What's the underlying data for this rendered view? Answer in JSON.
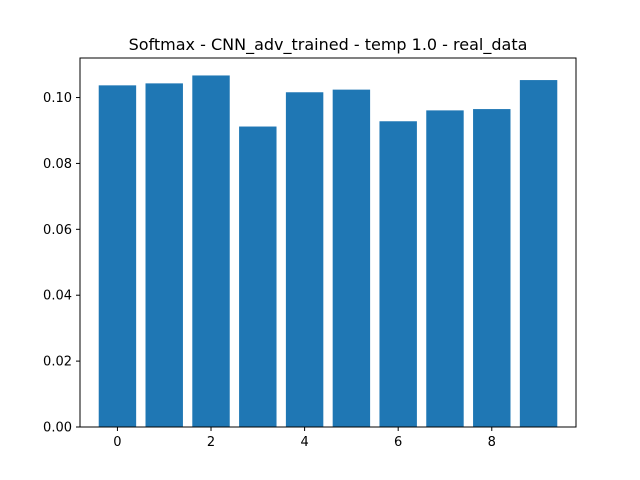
{
  "chart_data": {
    "type": "bar",
    "title": "Softmax - CNN_adv_trained - temp 1.0 - real_data",
    "xlabel": "",
    "ylabel": "",
    "categories": [
      0,
      1,
      2,
      3,
      4,
      5,
      6,
      7,
      8,
      9
    ],
    "values": [
      0.1037,
      0.1043,
      0.1067,
      0.0912,
      0.1016,
      0.1024,
      0.0928,
      0.0961,
      0.0965,
      0.1053
    ],
    "xlim": [
      -0.8,
      9.8
    ],
    "ylim": [
      0.0,
      0.112
    ],
    "xticks": [
      0,
      2,
      4,
      6,
      8
    ],
    "xtick_labels": [
      "0",
      "2",
      "4",
      "6",
      "8"
    ],
    "yticks": [
      0.0,
      0.02,
      0.04,
      0.06,
      0.08,
      0.1
    ],
    "ytick_labels": [
      "0.00",
      "0.02",
      "0.04",
      "0.06",
      "0.08",
      "0.10"
    ],
    "bar_color": "#1f77b4",
    "grid": false,
    "legend": "none"
  }
}
